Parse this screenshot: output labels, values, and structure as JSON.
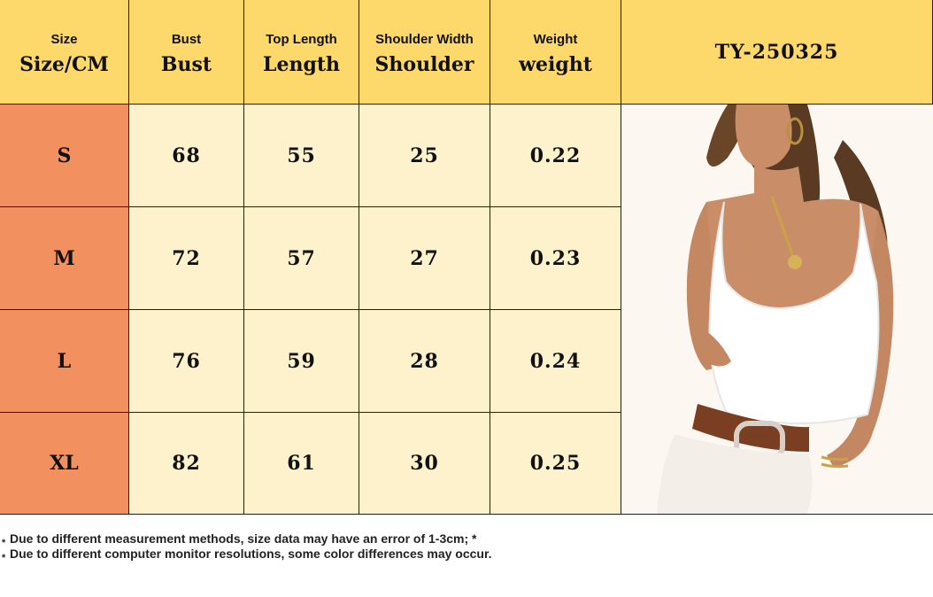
{
  "headers": [
    {
      "small": "Size",
      "big": "Size/CM"
    },
    {
      "small": "Bust",
      "big": "Bust"
    },
    {
      "small": "Top Length",
      "big": "Length"
    },
    {
      "small": "Shoulder Width",
      "big": "Shoulder"
    },
    {
      "small": "Weight",
      "big": "weight"
    }
  ],
  "product_code": "TY-250325",
  "rows": [
    {
      "size": "S",
      "bust": "68",
      "length": "55",
      "shoulder": "25",
      "weight": "0.22"
    },
    {
      "size": "M",
      "bust": "72",
      "length": "57",
      "shoulder": "27",
      "weight": "0.23"
    },
    {
      "size": "L",
      "bust": "76",
      "length": "59",
      "shoulder": "28",
      "weight": "0.24"
    },
    {
      "size": "XL",
      "bust": "82",
      "length": "61",
      "shoulder": "30",
      "weight": "0.25"
    }
  ],
  "notes": {
    "star": "*",
    "line1": "Due to different measurement methods, size data may have an error of 1-3cm; *",
    "line2": "Due to different computer monitor resolutions, some color differences may occur."
  },
  "colors": {
    "header_bg": "#FDD86A",
    "size_col_bg": "#F39060",
    "cell_bg": "#FEF2CC",
    "border": "#1f1f1f"
  }
}
